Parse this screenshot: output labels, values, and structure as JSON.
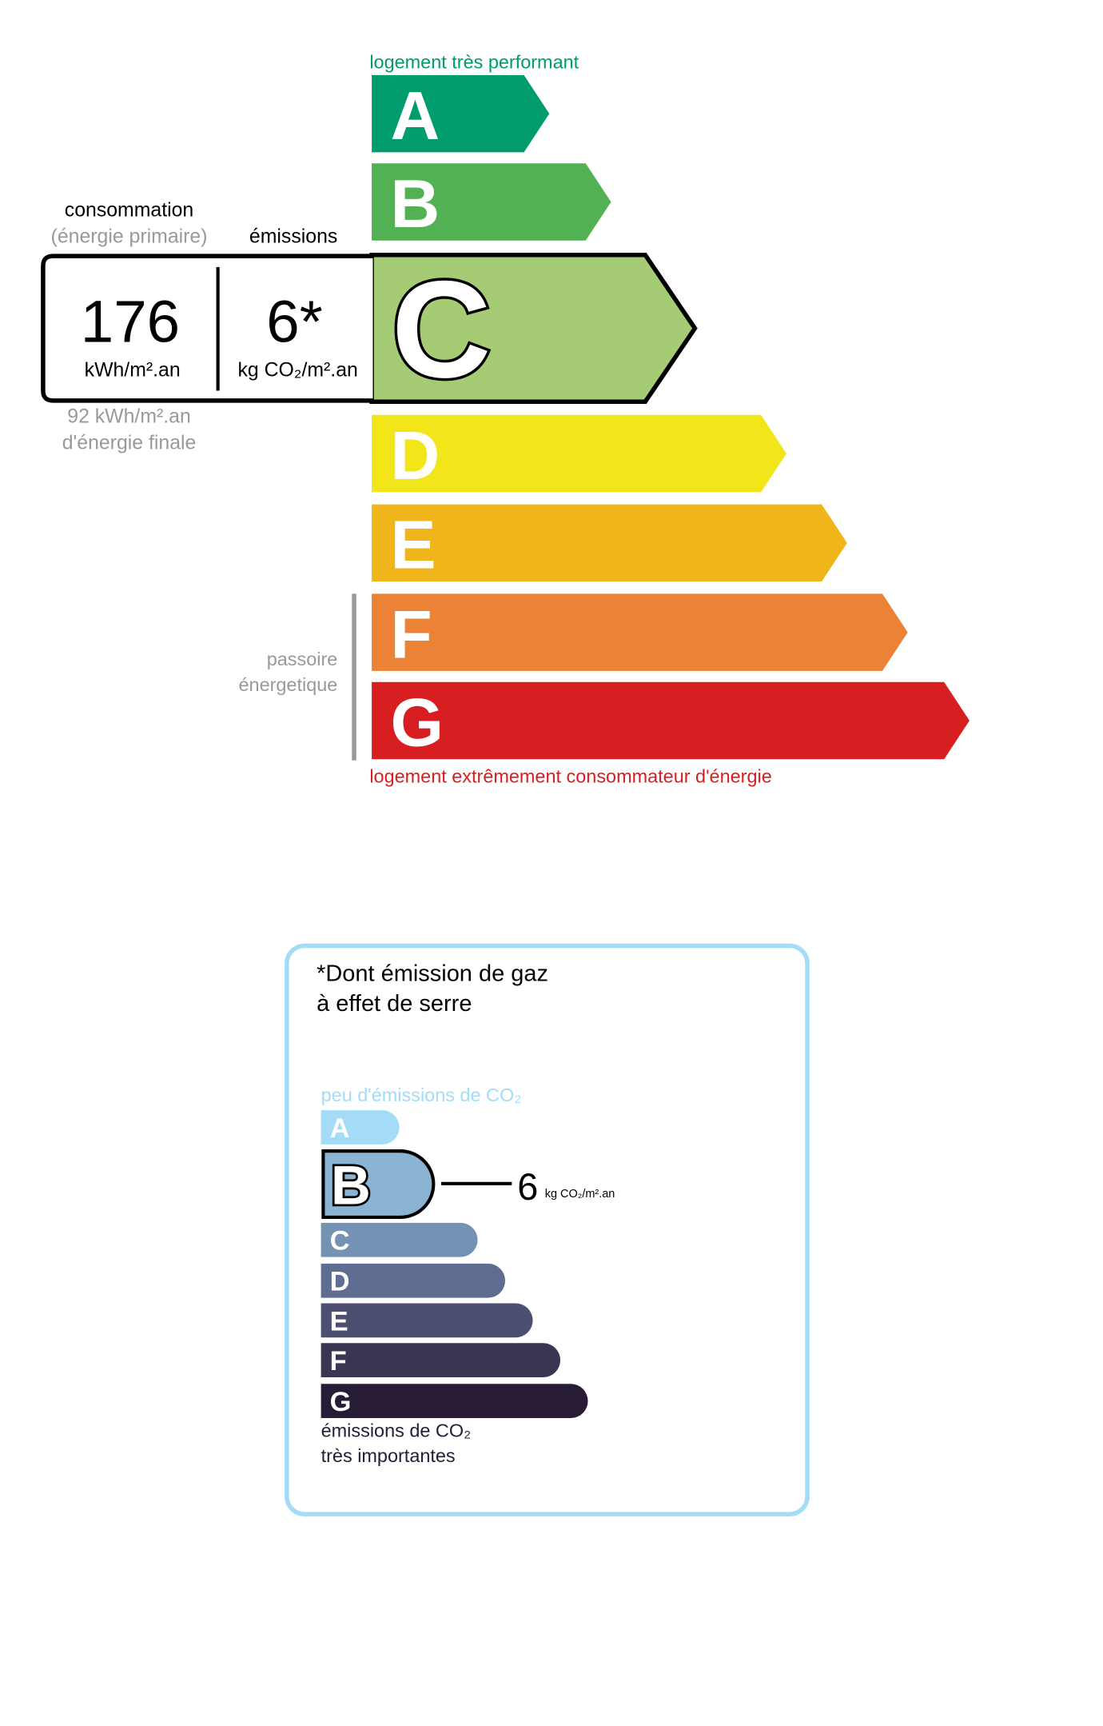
{
  "energy": {
    "top_label": "logement très performant",
    "bottom_label": "logement extrêmement consommateur d'énergie",
    "passoire_line1": "passoire",
    "passoire_line2": "énergetique",
    "classes": [
      {
        "letter": "A",
        "color": "#009c6d"
      },
      {
        "letter": "B",
        "color": "#52b153"
      },
      {
        "letter": "C",
        "color": "#a5cc74"
      },
      {
        "letter": "D",
        "color": "#f2e61b"
      },
      {
        "letter": "E",
        "color": "#f0b51a"
      },
      {
        "letter": "F",
        "color": "#eb8235"
      },
      {
        "letter": "G",
        "color": "#d71e20"
      }
    ],
    "current_class": "C",
    "consumption_label": "consommation",
    "consumption_sublabel": "(énergie primaire)",
    "emissions_label": "émissions",
    "consumption_value": "176",
    "consumption_unit": "kWh/m².an",
    "emissions_value": "6*",
    "emissions_unit": "kg CO₂/m².an",
    "final_energy_line1": "92 kWh/m².an",
    "final_energy_line2": "d'énergie finale"
  },
  "ges": {
    "title_line1": "*Dont émission de gaz",
    "title_line2": "à effet de serre",
    "top_label": "peu d'émissions de CO₂",
    "bottom_line1": "émissions de CO₂",
    "bottom_line2": "très importantes",
    "classes": [
      {
        "letter": "A",
        "color": "#a4dbf7"
      },
      {
        "letter": "B",
        "color": "#8bb4d3"
      },
      {
        "letter": "C",
        "color": "#7493b4"
      },
      {
        "letter": "D",
        "color": "#5f6d90"
      },
      {
        "letter": "E",
        "color": "#4d4f70"
      },
      {
        "letter": "F",
        "color": "#393552"
      },
      {
        "letter": "G",
        "color": "#281b35"
      }
    ],
    "current_class": "B",
    "value": "6",
    "unit": "kg CO₂/m².an",
    "border_color": "#a4dbf5"
  }
}
